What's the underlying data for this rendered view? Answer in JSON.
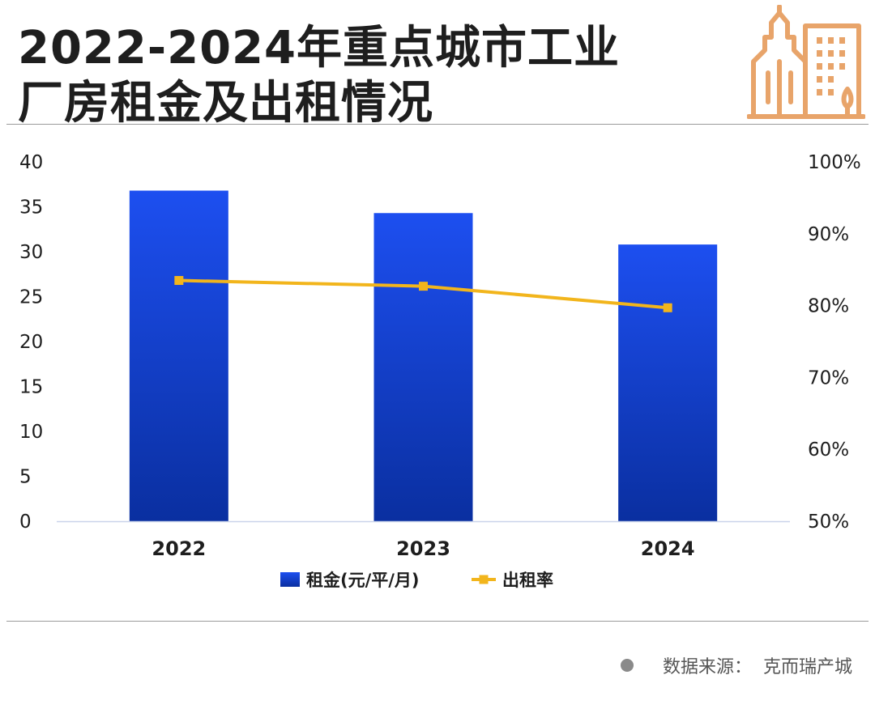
{
  "header": {
    "title_line1": "2022-2024年重点城市工业",
    "title_line2": "厂房租金及出租情况",
    "logo_icon": "buildings-icon"
  },
  "footer": {
    "source_label": "数据来源：",
    "source_value": "克而瑞产城"
  },
  "colors": {
    "bar_top": "#1d4ff0",
    "bar_bottom": "#0a2fa0",
    "line": "#f2b51c",
    "axis_text": "#1e1e1e",
    "logo": "#e8a46a"
  },
  "chart_data": {
    "type": "bar",
    "categories": [
      "2022",
      "2023",
      "2024"
    ],
    "series": [
      {
        "name": "租金(元/平/月)",
        "type": "bar",
        "axis": "left",
        "values": [
          36.8,
          34.3,
          30.8
        ]
      },
      {
        "name": "出租率",
        "type": "line",
        "axis": "right",
        "values": [
          83.5,
          82.7,
          79.7
        ]
      }
    ],
    "y_left": {
      "min": 0,
      "max": 40,
      "ticks": [
        "0",
        "5",
        "10",
        "15",
        "20",
        "25",
        "30",
        "35",
        "40"
      ]
    },
    "y_right": {
      "min": 50,
      "max": 100,
      "ticks": [
        "50%",
        "60%",
        "70%",
        "80%",
        "90%",
        "100%"
      ]
    },
    "grid": false,
    "legend": "bottom"
  }
}
